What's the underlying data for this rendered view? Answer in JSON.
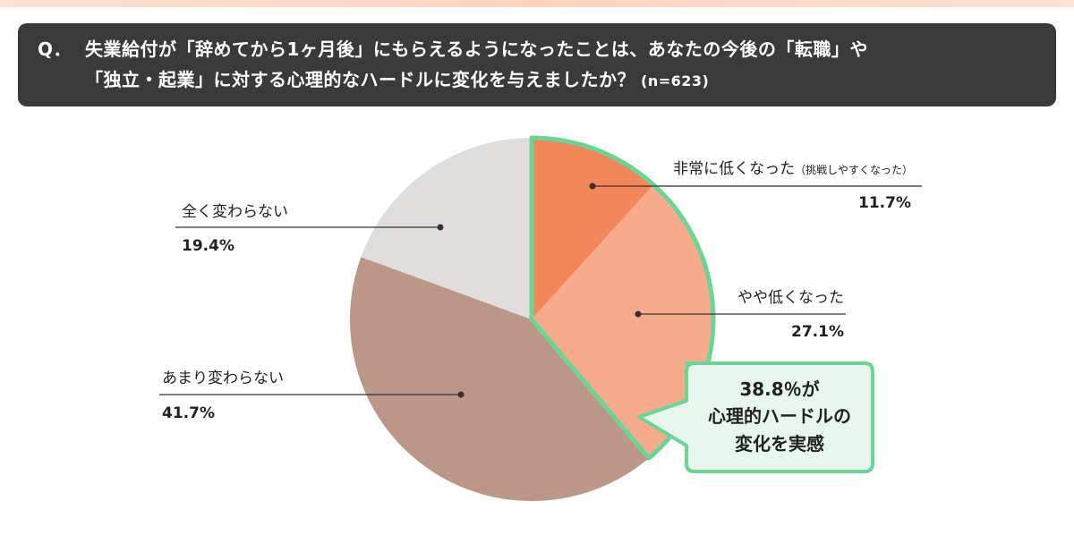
{
  "question": {
    "prefix": "Q．",
    "line1": "失業給付が「辞めてから1ヶ月後」にもらえるようになったことは、あなたの今後の「転職」や",
    "line2": "「独立・起業」に対する心理的なハードルに変化を与えましたか？",
    "n_label": "(n=623)"
  },
  "chart_data": {
    "type": "pie",
    "slices": [
      {
        "label": "非常に低くなった",
        "sublabel": "（挑戦しやすくなった）",
        "value": 11.7,
        "value_label": "11.7%",
        "color": "#f4875a"
      },
      {
        "label": "やや低くなった",
        "value": 27.1,
        "value_label": "27.1%",
        "color": "#f6ab8c"
      },
      {
        "label": "あまり変わらない",
        "value": 41.7,
        "value_label": "41.7%",
        "color": "#bc9687"
      },
      {
        "label": "全く変わらない",
        "value": 19.4,
        "value_label": "19.4%",
        "color": "#e0dedd"
      }
    ],
    "highlight": {
      "slices": [
        "非常に低くなった",
        "やや低くなった"
      ],
      "outline_color": "#6ad694",
      "callout_lines": [
        "38.8％が",
        "心理的ハードルの",
        "変化を実感"
      ],
      "callout_bg": "#e7f7ee"
    }
  }
}
